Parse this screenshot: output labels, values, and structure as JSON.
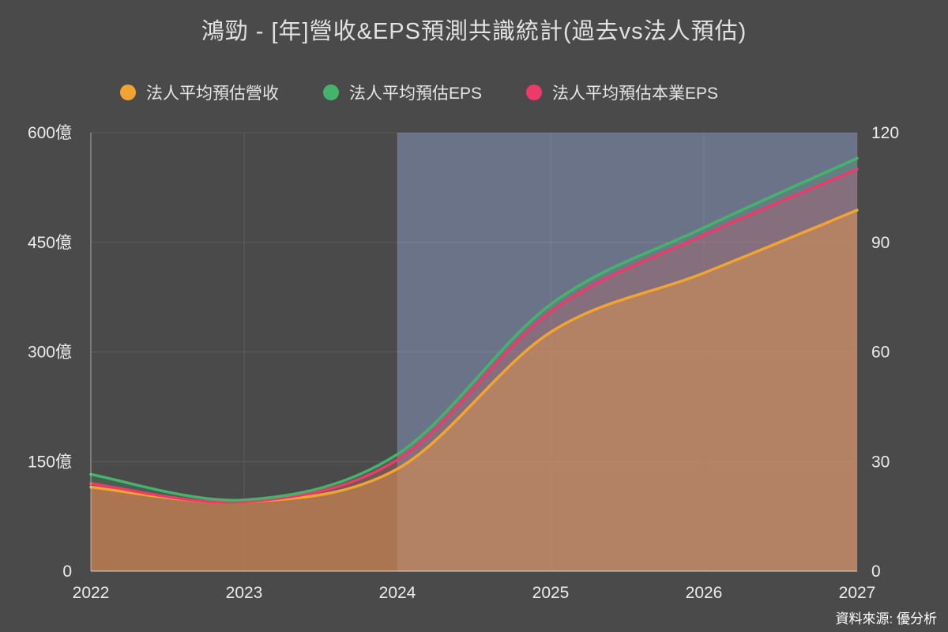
{
  "page": {
    "background": "#4a4a4a",
    "source": "資料來源: 優分析"
  },
  "chart_data": {
    "type": "area",
    "title": "鴻勁 - [年]營收&EPS預測共識統計(過去vs法人預估)",
    "x": [
      2022,
      2023,
      2024,
      2025,
      2026,
      2027
    ],
    "x_ticks": [
      "2022",
      "2023",
      "2024",
      "2025",
      "2026",
      "2027"
    ],
    "left_axis": {
      "min": 0,
      "max": 600,
      "ticks": [
        "0",
        "150億",
        "300億",
        "450億",
        "600億"
      ]
    },
    "right_axis": {
      "min": 0,
      "max": 120,
      "ticks": [
        "0",
        "30",
        "60",
        "90",
        "120"
      ]
    },
    "forecast_start": 2024,
    "forecast_overlay_color": "rgba(140,155,200,0.5)",
    "grid": true,
    "legend_position": "top",
    "series": [
      {
        "name": "法人平均預估營收",
        "axis": "left",
        "color": "#f2a432",
        "fill": "rgba(226,148,74,0.5)",
        "values": [
          115,
          95,
          140,
          327,
          408,
          494
        ]
      },
      {
        "name": "法人平均預估EPS",
        "axis": "right",
        "color": "#45b36b",
        "fill": "rgba(69,179,107,0.22)",
        "values": [
          26.5,
          19.5,
          32,
          73,
          94,
          113
        ]
      },
      {
        "name": "法人平均預估本業EPS",
        "axis": "right",
        "color": "#ee3a6b",
        "fill": "rgba(238,58,107,0.25)",
        "values": [
          24,
          19,
          30.5,
          71,
          92,
          110
        ]
      }
    ]
  }
}
